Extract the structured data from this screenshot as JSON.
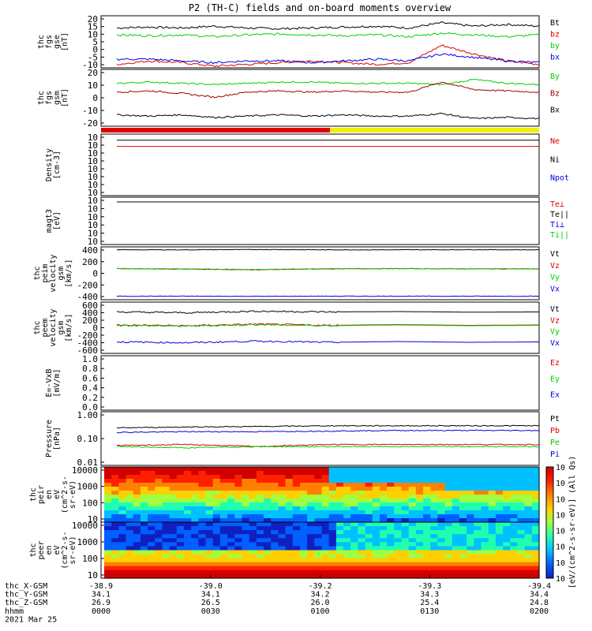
{
  "title": "P2 (TH-C) fields and on-board moments overview",
  "colors": {
    "black": "#000000",
    "red": "#e00000",
    "green": "#00d000",
    "blue": "#0000e0",
    "darkred": "#a00000",
    "yellow": "#f0f000"
  },
  "chart_data": [
    {
      "type": "line",
      "ylabel": [
        "thc",
        "fgs",
        "gse",
        "[nT]"
      ],
      "ylim": [
        -10,
        20
      ],
      "yticks": [
        "20",
        "15",
        "10",
        "5",
        "0",
        "-5",
        "-10"
      ],
      "series": [
        {
          "name": "Bt",
          "color": "#000000",
          "values": [
            13,
            13.5,
            13,
            14,
            13,
            12.5,
            13,
            13.5,
            14,
            13,
            16,
            14,
            15,
            14
          ]
        },
        {
          "name": "bz",
          "color": "#e00000",
          "values": [
            -8,
            -6,
            -7,
            -9,
            -8,
            -7,
            -6,
            -7,
            -8,
            -7,
            3,
            -2,
            -6,
            -8
          ]
        },
        {
          "name": "by",
          "color": "#00d000",
          "values": [
            9,
            8.5,
            9,
            8,
            9,
            9.5,
            9,
            8.5,
            9,
            8,
            10,
            9,
            8,
            9
          ]
        },
        {
          "name": "bx",
          "color": "#0000e0",
          "values": [
            -5,
            -5,
            -6,
            -7,
            -6,
            -6,
            -7,
            -6,
            -5,
            -6,
            -2,
            -4,
            -6,
            -7
          ]
        }
      ]
    },
    {
      "type": "line",
      "ylabel": [
        "thc",
        "fgs",
        "gsm",
        "[nT]"
      ],
      "ylim": [
        -25,
        20
      ],
      "yticks": [
        "20",
        "10",
        "0",
        "-10",
        "-20"
      ],
      "series": [
        {
          "name": "By",
          "color": "#00d000",
          "values": [
            9,
            10,
            9,
            8,
            9,
            10,
            10,
            9,
            9,
            9,
            8,
            12,
            9,
            8
          ]
        },
        {
          "name": "Bz",
          "color": "#a00000",
          "values": [
            2,
            3,
            1,
            -2,
            2,
            3,
            2,
            3,
            2,
            2,
            10,
            4,
            3,
            2
          ]
        },
        {
          "name": "Bx",
          "color": "#000000",
          "values": [
            -16,
            -17,
            -16,
            -18,
            -17,
            -16,
            -17,
            -16,
            -17,
            -17,
            -15,
            -19,
            -18,
            -19
          ]
        }
      ]
    },
    {
      "type": "line",
      "ylabel": [
        "Density",
        "[cm-3]"
      ],
      "yticks": [
        "10",
        "10",
        "10",
        "10",
        "10",
        "10",
        "10",
        "10"
      ],
      "series": [
        {
          "name": "Ne",
          "color": "#e00000",
          "values": [
            0.8,
            0.8,
            0.8,
            0.8,
            0.8,
            0.8,
            0.8
          ]
        },
        {
          "name": "Ni",
          "color": "#000000",
          "values": [
            0.9,
            0.9,
            0.9,
            0.9,
            0.9,
            0.9,
            0.9
          ]
        },
        {
          "name": "Npot",
          "color": "#0000e0",
          "values": []
        }
      ]
    },
    {
      "type": "line",
      "ylabel": [
        "magt3",
        "[eV]"
      ],
      "yticks": [
        "10",
        "10",
        "10",
        "10",
        "10",
        "10"
      ],
      "series": [
        {
          "name": "Te⊥",
          "color": "#e00000",
          "values": []
        },
        {
          "name": "Te||",
          "color": "#000000",
          "values": [
            0.9,
            0.9,
            0.9,
            0.9,
            0.9
          ]
        },
        {
          "name": "Ti⊥",
          "color": "#0000e0",
          "values": []
        },
        {
          "name": "Ti||",
          "color": "#00d000",
          "values": []
        }
      ]
    },
    {
      "type": "line",
      "ylabel": [
        "thc",
        "peim",
        "velocity",
        "gsm",
        "[km/s]"
      ],
      "ylim": [
        -450,
        450
      ],
      "yticks": [
        "400",
        "200",
        "0",
        "-200",
        "-400"
      ],
      "series": [
        {
          "name": "Vt",
          "color": "#000000",
          "values": [
            400,
            400,
            405,
            400,
            400,
            402,
            400
          ]
        },
        {
          "name": "Vz",
          "color": "#e00000",
          "values": [
            80,
            70,
            60,
            75,
            80,
            75,
            75
          ]
        },
        {
          "name": "Vy",
          "color": "#00d000",
          "values": [
            80,
            75,
            65,
            80,
            78,
            78,
            78
          ]
        },
        {
          "name": "Vx",
          "color": "#0000e0",
          "values": [
            -390,
            -390,
            -392,
            -390,
            -390,
            -390,
            -390
          ]
        }
      ]
    },
    {
      "type": "line",
      "ylabel": [
        "thc",
        "peem",
        "velocity",
        "gsm",
        "[km/s]"
      ],
      "ylim": [
        -650,
        650
      ],
      "yticks": [
        "600",
        "400",
        "200",
        "0",
        "-200",
        "-400",
        "-600"
      ],
      "series": [
        {
          "name": "Vt",
          "color": "#000000",
          "values": [
            400,
            380,
            420,
            400,
            410,
            395,
            400
          ]
        },
        {
          "name": "Vz",
          "color": "#e00000",
          "values": [
            70,
            50,
            90,
            60,
            80,
            60,
            70
          ]
        },
        {
          "name": "Vy",
          "color": "#00d000",
          "values": [
            60,
            40,
            80,
            50,
            70,
            50,
            60
          ]
        },
        {
          "name": "Vx",
          "color": "#0000e0",
          "values": [
            -360,
            -380,
            -340,
            -370,
            -350,
            -370,
            -360
          ]
        }
      ]
    },
    {
      "type": "line",
      "ylabel": [
        "E=-VxB",
        "[mV/m]"
      ],
      "ylim": [
        0,
        1
      ],
      "yticks": [
        "1.0",
        "0.8",
        "0.6",
        "0.4",
        "0.2",
        "0.0"
      ],
      "series": [
        {
          "name": "Ez",
          "color": "#e00000",
          "values": []
        },
        {
          "name": "Ey",
          "color": "#00d000",
          "values": []
        },
        {
          "name": "Ex",
          "color": "#0000e0",
          "values": []
        }
      ]
    },
    {
      "type": "line",
      "ylabel": [
        "Pressure",
        "[nPa]"
      ],
      "ylim": [
        0.01,
        1
      ],
      "yticks": [
        "1.00",
        "0.10",
        "0.01"
      ],
      "series": [
        {
          "name": "Pt",
          "color": "#000000",
          "values": [
            0.25,
            0.27,
            0.28,
            0.3,
            0.3,
            0.3,
            0.3
          ]
        },
        {
          "name": "Pb",
          "color": "#e00000",
          "values": [
            0.055,
            0.06,
            0.05,
            0.06,
            0.06,
            0.06,
            0.06
          ]
        },
        {
          "name": "Pe",
          "color": "#00d000",
          "values": [
            0.05,
            0.045,
            0.05,
            0.05,
            0.05,
            0.05,
            0.05
          ]
        },
        {
          "name": "Pi",
          "color": "#0000e0",
          "values": [
            0.17,
            0.18,
            0.18,
            0.19,
            0.2,
            0.2,
            0.2
          ]
        }
      ]
    },
    {
      "type": "heatmap",
      "ylabel": [
        "thc",
        "peir",
        "en",
        "eV",
        "(cm^2-s-",
        "sr-eV)"
      ],
      "yticks": [
        "10000",
        "1000",
        "100",
        "10"
      ]
    },
    {
      "type": "heatmap",
      "ylabel": [
        "thc",
        "peer",
        "en",
        "eV",
        "(cm^2-s-",
        "sr-eV)"
      ],
      "yticks": [
        "10000",
        "1000",
        "100",
        "10"
      ],
      "colorbar_ticks": [
        "10",
        "10",
        "10",
        "10",
        "10",
        "10",
        "10",
        "10"
      ],
      "colorbar_label": "[eV/(cm^2-s-sr-eV)] (All Qs)"
    }
  ],
  "xaxis": {
    "row_labels": [
      "thc_X-GSM",
      "thc_Y-GSM",
      "thc_Z-GSM",
      "hhmm",
      "2021 Mar 25"
    ],
    "columns": [
      [
        "-38.9",
        "34.1",
        "26.9",
        "0000"
      ],
      [
        "-39.0",
        "34.1",
        "26.5",
        "0030"
      ],
      [
        "-39.2",
        "34.2",
        "26.0",
        "0100"
      ],
      [
        "-39.3",
        "34.3",
        "25.4",
        "0130"
      ],
      [
        "-39.4",
        "34.4",
        "24.8",
        "0200"
      ]
    ]
  }
}
